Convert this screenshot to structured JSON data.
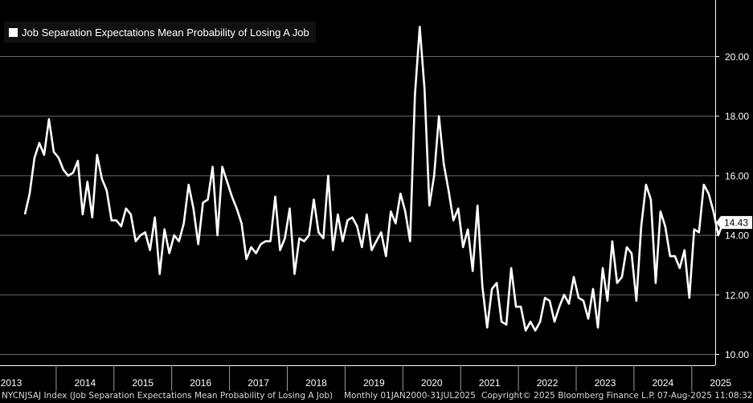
{
  "chart_data": {
    "type": "line",
    "title": "",
    "xlabel": "",
    "ylabel": "",
    "legend": {
      "label": "Job Separation Expectations Mean Probability of Losing A Job",
      "placement": "top-left"
    },
    "ylim": [
      9.8,
      21.9
    ],
    "yticks": [
      10,
      12,
      14,
      16,
      18,
      20
    ],
    "ytick_labels": [
      "10.00",
      "12.00",
      "14.00",
      "16.00",
      "18.00",
      "20.00"
    ],
    "x_tick_labels": [
      "2013",
      "2014",
      "2015",
      "2016",
      "2017",
      "2018",
      "2019",
      "2020",
      "2021",
      "2022",
      "2023",
      "2024",
      "2025"
    ],
    "last_value_label": "14.43",
    "line_color": "#ffffff",
    "grid": true,
    "series": [
      {
        "name": "Job Separation Expectations Mean Probability of Losing A Job",
        "x": [
          "2013-06",
          "2013-07",
          "2013-08",
          "2013-09",
          "2013-10",
          "2013-11",
          "2013-12",
          "2014-01",
          "2014-02",
          "2014-03",
          "2014-04",
          "2014-05",
          "2014-06",
          "2014-07",
          "2014-08",
          "2014-09",
          "2014-10",
          "2014-11",
          "2014-12",
          "2015-01",
          "2015-02",
          "2015-03",
          "2015-04",
          "2015-05",
          "2015-06",
          "2015-07",
          "2015-08",
          "2015-09",
          "2015-10",
          "2015-11",
          "2015-12",
          "2016-01",
          "2016-02",
          "2016-03",
          "2016-04",
          "2016-05",
          "2016-06",
          "2016-07",
          "2016-08",
          "2016-09",
          "2016-10",
          "2016-11",
          "2016-12",
          "2017-01",
          "2017-02",
          "2017-03",
          "2017-04",
          "2017-05",
          "2017-06",
          "2017-07",
          "2017-08",
          "2017-09",
          "2017-10",
          "2017-11",
          "2017-12",
          "2018-01",
          "2018-02",
          "2018-03",
          "2018-04",
          "2018-05",
          "2018-06",
          "2018-07",
          "2018-08",
          "2018-09",
          "2018-10",
          "2018-11",
          "2018-12",
          "2019-01",
          "2019-02",
          "2019-03",
          "2019-04",
          "2019-05",
          "2019-06",
          "2019-07",
          "2019-08",
          "2019-09",
          "2019-10",
          "2019-11",
          "2019-12",
          "2020-01",
          "2020-02",
          "2020-03",
          "2020-04",
          "2020-05",
          "2020-06",
          "2020-07",
          "2020-08",
          "2020-09",
          "2020-10",
          "2020-11",
          "2020-12",
          "2021-01",
          "2021-02",
          "2021-03",
          "2021-04",
          "2021-05",
          "2021-06",
          "2021-07",
          "2021-08",
          "2021-09",
          "2021-10",
          "2021-11",
          "2021-12",
          "2022-01",
          "2022-02",
          "2022-03",
          "2022-04",
          "2022-05",
          "2022-06",
          "2022-07",
          "2022-08",
          "2022-09",
          "2022-10",
          "2022-11",
          "2022-12",
          "2023-01",
          "2023-02",
          "2023-03",
          "2023-04",
          "2023-05",
          "2023-06",
          "2023-07",
          "2023-08",
          "2023-09",
          "2023-10",
          "2023-11",
          "2023-12",
          "2024-01",
          "2024-02",
          "2024-03",
          "2024-04",
          "2024-05",
          "2024-06",
          "2024-07",
          "2024-08",
          "2024-09",
          "2024-10",
          "2024-11",
          "2024-12",
          "2025-01",
          "2025-02",
          "2025-03",
          "2025-04",
          "2025-05",
          "2025-06",
          "2025-07"
        ],
        "values": [
          14.7,
          15.4,
          16.6,
          17.1,
          16.7,
          17.9,
          16.8,
          16.6,
          16.2,
          16.0,
          16.1,
          16.5,
          14.7,
          15.8,
          14.6,
          16.7,
          15.9,
          15.5,
          14.5,
          14.5,
          14.3,
          14.9,
          14.7,
          13.8,
          14.0,
          14.1,
          13.5,
          14.6,
          12.7,
          14.2,
          13.4,
          14.0,
          13.8,
          14.4,
          15.7,
          14.9,
          13.7,
          15.1,
          15.2,
          16.3,
          14.0,
          16.3,
          15.8,
          15.3,
          14.9,
          14.4,
          13.2,
          13.6,
          13.4,
          13.7,
          13.8,
          13.8,
          15.3,
          13.5,
          13.9,
          14.9,
          12.7,
          13.9,
          13.8,
          14.0,
          15.2,
          14.1,
          13.9,
          16.0,
          13.5,
          14.7,
          13.8,
          14.5,
          14.6,
          14.3,
          13.6,
          14.7,
          13.5,
          13.8,
          14.1,
          13.3,
          14.8,
          14.4,
          15.4,
          14.8,
          13.8,
          18.7,
          21.0,
          18.9,
          15.0,
          16.0,
          18.0,
          16.4,
          15.5,
          14.5,
          14.9,
          13.6,
          14.2,
          12.8,
          15.0,
          12.3,
          10.9,
          12.2,
          12.4,
          11.1,
          11.0,
          12.9,
          11.6,
          11.6,
          10.8,
          11.1,
          10.8,
          11.1,
          11.9,
          11.8,
          11.1,
          11.6,
          12.0,
          11.7,
          12.6,
          11.9,
          11.8,
          11.2,
          12.2,
          10.9,
          12.9,
          11.8,
          13.8,
          12.4,
          12.6,
          13.6,
          13.4,
          11.8,
          14.3,
          15.7,
          15.2,
          12.4,
          14.8,
          14.3,
          13.3,
          13.3,
          12.9,
          13.5,
          11.9,
          14.2,
          14.1,
          15.7,
          15.4,
          14.8,
          14.0,
          14.43
        ]
      }
    ]
  },
  "footer": {
    "index_desc": "NYCNJSAJ Index (Job Separation Expectations Mean Probability of Losing A Job)",
    "period": "Monthly 01JAN2000-31JUL2025",
    "copyright": "Copyright© 2025 Bloomberg Finance L.P.",
    "timestamp": "07-Aug-2025 11:08:32"
  }
}
